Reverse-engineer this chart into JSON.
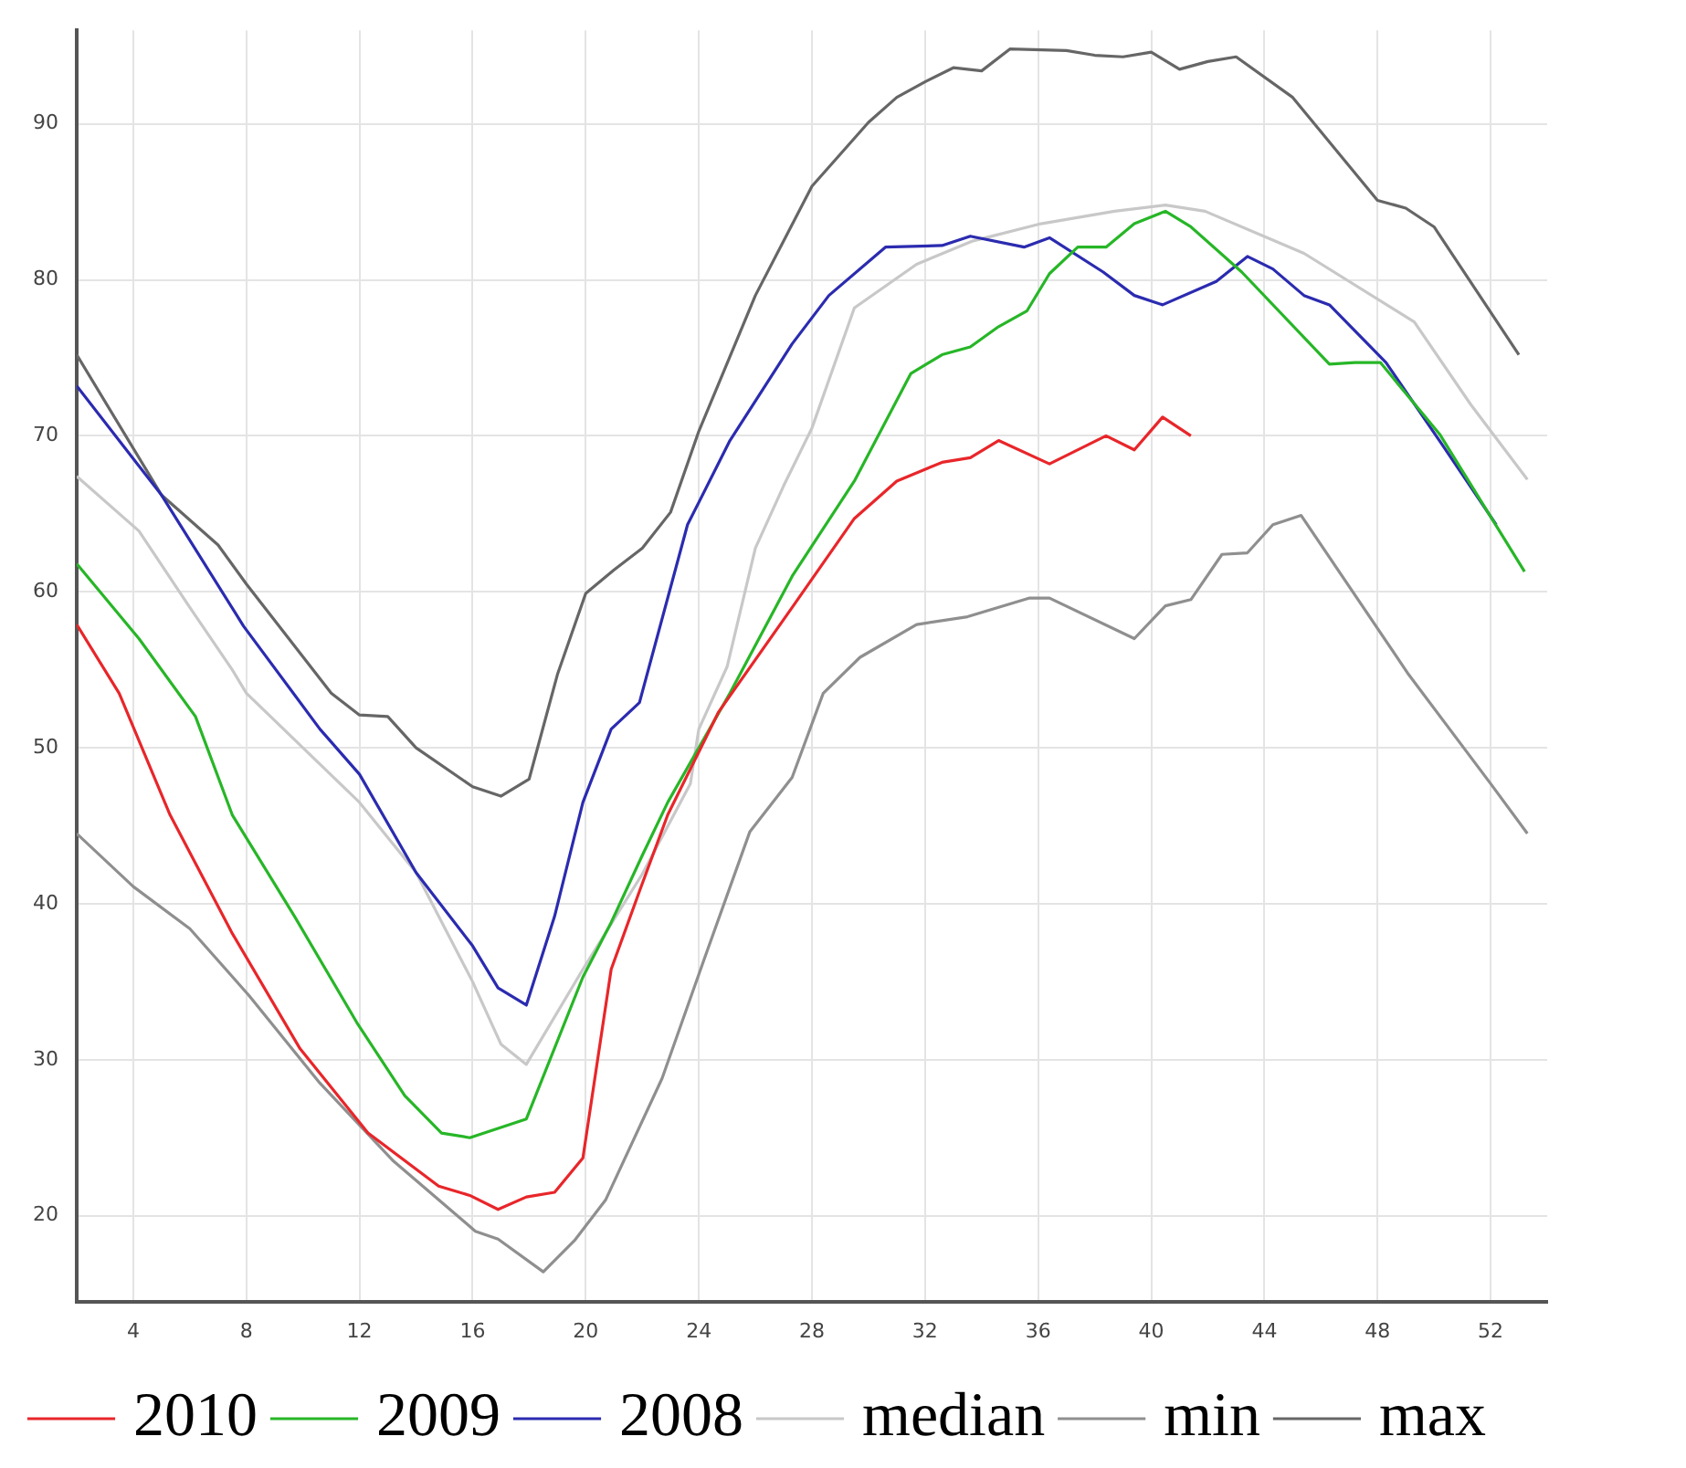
{
  "chart_data": {
    "type": "line",
    "xlim": [
      2,
      54
    ],
    "ylim": [
      14.5,
      96
    ],
    "xticks": [
      4,
      8,
      12,
      16,
      20,
      24,
      28,
      32,
      36,
      40,
      44,
      48,
      52
    ],
    "yticks": [
      20,
      30,
      40,
      50,
      60,
      70,
      80,
      90
    ],
    "grid": true,
    "legend": "bottom",
    "series": [
      {
        "name": "2010",
        "color": "#e8262a",
        "x": [
          2,
          3.5,
          5.3,
          7.5,
          9.9,
          12.3,
          14.8,
          15.9,
          16.9,
          17.9,
          18.9,
          19.9,
          20.9,
          21.9,
          22.9,
          24.7,
          27.3,
          29.5,
          31,
          32.6,
          33.6,
          34.6,
          36.4,
          38.4,
          39.4,
          40.4,
          41.4
        ],
        "values": [
          57.9,
          53.5,
          45.7,
          38.1,
          30.7,
          25.3,
          21.9,
          21.3,
          20.4,
          21.2,
          21.5,
          23.7,
          35.8,
          40.8,
          45.7,
          52.3,
          59,
          64.7,
          67.1,
          68.3,
          68.6,
          69.7,
          68.2,
          70,
          69.1,
          71.2,
          70
        ]
      },
      {
        "name": "2009",
        "color": "#27b627",
        "x": [
          2,
          4.2,
          6.2,
          7.5,
          9.7,
          11.9,
          13.6,
          14.9,
          15.9,
          17.9,
          19.9,
          20.9,
          22,
          22.9,
          24,
          25.1,
          27.3,
          29.5,
          31.5,
          32.6,
          33.6,
          34.6,
          35.6,
          36.4,
          37.4,
          38.4,
          39.4,
          40.5,
          41.4,
          43.2,
          46.3,
          47.2,
          48.1,
          50.2,
          53.2
        ],
        "values": [
          61.8,
          57,
          52,
          45.7,
          39.2,
          32.4,
          27.7,
          25.3,
          25,
          26.2,
          35.3,
          38.8,
          43.1,
          46.5,
          50,
          53.5,
          61,
          67.1,
          74,
          75.2,
          75.7,
          77,
          78,
          80.4,
          82.1,
          82.1,
          83.6,
          84.4,
          83.4,
          80.5,
          74.6,
          74.7,
          74.7,
          70.1,
          61.3
        ]
      },
      {
        "name": "2008",
        "color": "#2b2bb0",
        "x": [
          2,
          5,
          7.9,
          10.6,
          12,
          14,
          16,
          16.9,
          17.9,
          18.9,
          19.9,
          20.9,
          21.9,
          23.6,
          25.1,
          27.3,
          28.6,
          30.6,
          32.6,
          33.6,
          35.5,
          36.4,
          38.3,
          39.4,
          40.4,
          42.3,
          43.4,
          44.3,
          45.4,
          46.3,
          48.3,
          50.3,
          52.2
        ],
        "values": [
          73.2,
          66.2,
          57.8,
          51.2,
          48.3,
          42,
          37.3,
          34.6,
          33.5,
          39.2,
          46.5,
          51.2,
          52.9,
          64.3,
          69.7,
          75.9,
          79,
          82.1,
          82.2,
          82.8,
          82.1,
          82.7,
          80.5,
          79,
          78.4,
          79.9,
          81.5,
          80.7,
          79,
          78.4,
          74.7,
          69.4,
          64.3
        ]
      },
      {
        "name": "median",
        "color": "#c8c8c8",
        "x": [
          2,
          4.2,
          6,
          7.5,
          8,
          10,
          12,
          14,
          16,
          17,
          17.9,
          19.9,
          22,
          23.7,
          24,
          25,
          26,
          27,
          28,
          29.5,
          31.7,
          33.7,
          36.1,
          38.7,
          40.5,
          41.9,
          45.4,
          49.3,
          51.3,
          53.3
        ],
        "values": [
          67.4,
          63.9,
          59,
          55,
          53.5,
          50,
          46.5,
          42,
          35,
          31,
          29.7,
          35.8,
          41.9,
          47.7,
          51.2,
          55.2,
          62.8,
          66.8,
          70.5,
          78.2,
          81,
          82.5,
          83.6,
          84.4,
          84.8,
          84.4,
          81.7,
          77.3,
          72,
          67.2
        ]
      },
      {
        "name": "min",
        "color": "#8f8f8f",
        "x": [
          2,
          4,
          6,
          8.1,
          10.6,
          13.2,
          16.1,
          16.9,
          18.5,
          19.6,
          20.7,
          22.7,
          24.2,
          25.8,
          27.3,
          28.4,
          29.7,
          31.7,
          33.5,
          34.6,
          35.7,
          36.4,
          39.4,
          40.5,
          41.4,
          42.5,
          43.4,
          44.3,
          45.3,
          49.1,
          52,
          53.3
        ],
        "values": [
          44.5,
          41.1,
          38.4,
          34.1,
          28.5,
          23.5,
          19,
          18.5,
          16.4,
          18.4,
          21,
          28.8,
          36.5,
          44.6,
          48.1,
          53.5,
          55.8,
          57.9,
          58.4,
          59,
          59.6,
          59.6,
          57,
          59.1,
          59.5,
          62.4,
          62.5,
          64.3,
          64.9,
          54.7,
          47.7,
          44.5
        ]
      },
      {
        "name": "max",
        "color": "#666666",
        "x": [
          2,
          5,
          7,
          8,
          11,
          12,
          13,
          14,
          16,
          17,
          18,
          19,
          20,
          21,
          22,
          23,
          24,
          26,
          28,
          30,
          31,
          32,
          33,
          34,
          35,
          37,
          38,
          39,
          40,
          41,
          42,
          43,
          45,
          48,
          49,
          50,
          53
        ],
        "values": [
          75.2,
          66.2,
          63,
          60.5,
          53.5,
          52.1,
          52,
          50,
          47.5,
          46.9,
          48,
          54.7,
          59.9,
          61.4,
          62.8,
          65.1,
          70.3,
          79,
          86,
          90.1,
          91.7,
          92.7,
          93.6,
          93.4,
          94.8,
          94.7,
          94.4,
          94.3,
          94.6,
          93.5,
          94,
          94.3,
          91.7,
          85.1,
          84.6,
          83.4,
          75.2
        ]
      }
    ]
  }
}
